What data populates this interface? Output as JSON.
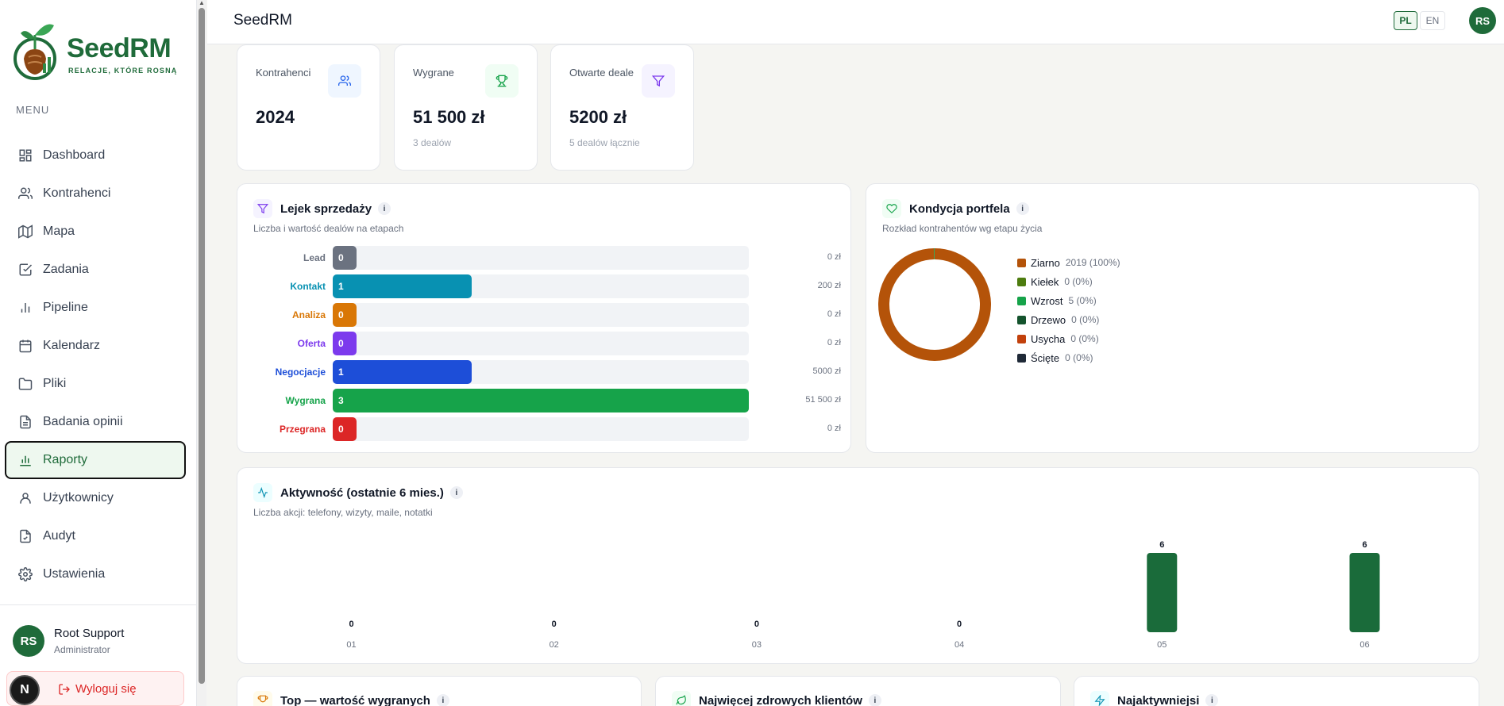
{
  "app": {
    "title": "SeedRM"
  },
  "logo": {
    "brand": "SeedRM",
    "tagline": "RELACJE, KTÓRE ROSNĄ"
  },
  "sidebar": {
    "menu_label": "MENU",
    "items": [
      {
        "label": "Dashboard",
        "icon": "grid-icon"
      },
      {
        "label": "Kontrahenci",
        "icon": "users-icon"
      },
      {
        "label": "Mapa",
        "icon": "map-icon"
      },
      {
        "label": "Zadania",
        "icon": "checkbox-icon"
      },
      {
        "label": "Pipeline",
        "icon": "bar-chart-icon"
      },
      {
        "label": "Kalendarz",
        "icon": "calendar-icon"
      },
      {
        "label": "Pliki",
        "icon": "folder-icon"
      },
      {
        "label": "Badania opinii",
        "icon": "document-icon"
      },
      {
        "label": "Raporty",
        "icon": "chart-icon",
        "active": true
      },
      {
        "label": "Użytkownicy",
        "icon": "user-icon"
      },
      {
        "label": "Audyt",
        "icon": "file-check-icon"
      },
      {
        "label": "Ustawienia",
        "icon": "gear-icon"
      }
    ],
    "user": {
      "initials": "RS",
      "name": "Root Support",
      "role": "Administrator"
    },
    "logout_label": "Wyloguj się",
    "n_badge": "N"
  },
  "topbar": {
    "lang_pl": "PL",
    "lang_en": "EN",
    "avatar": "RS"
  },
  "stats": [
    {
      "label": "Kontrahenci",
      "value": "2024",
      "sub": "",
      "icon": "users-icon",
      "color": "#2563eb",
      "bg": "#eff6ff"
    },
    {
      "label": "Wygrane",
      "value": "51 500 zł",
      "sub": "3 dealów",
      "icon": "trophy-icon",
      "color": "#16a34a",
      "bg": "#f0fdf4"
    },
    {
      "label": "Otwarte deale",
      "value": "5200 zł",
      "sub": "5 dealów łącznie",
      "icon": "filter-icon",
      "color": "#7c3aed",
      "bg": "#f5f3ff"
    }
  ],
  "funnel": {
    "title": "Lejek sprzedaży",
    "subtitle": "Liczba i wartość dealów na etapach",
    "info": "i",
    "max_count": 3,
    "rows": [
      {
        "label": "Lead",
        "count": "0",
        "count_value": 0,
        "amount": "0 zł",
        "color": "#6b7280"
      },
      {
        "label": "Kontakt",
        "count": "1",
        "count_value": 1,
        "amount": "200 zł",
        "color": "#0891b2"
      },
      {
        "label": "Analiza",
        "count": "0",
        "count_value": 0,
        "amount": "0 zł",
        "color": "#d97706"
      },
      {
        "label": "Oferta",
        "count": "0",
        "count_value": 0,
        "amount": "0 zł",
        "color": "#7c3aed"
      },
      {
        "label": "Negocjacje",
        "count": "1",
        "count_value": 1,
        "amount": "5000 zł",
        "color": "#1d4ed8"
      },
      {
        "label": "Wygrana",
        "count": "3",
        "count_value": 3,
        "amount": "51 500 zł",
        "color": "#16a34a"
      },
      {
        "label": "Przegrana",
        "count": "0",
        "count_value": 0,
        "amount": "0 zł",
        "color": "#dc2626"
      }
    ]
  },
  "portfolio": {
    "title": "Kondycja portfela",
    "subtitle": "Rozkład kontrahentów wg etapu życia",
    "info": "i",
    "legend": [
      {
        "label": "Ziarno",
        "count": "2019 (100%)",
        "value": 2019,
        "color": "#b45309"
      },
      {
        "label": "Kiełek",
        "count": "0 (0%)",
        "value": 0,
        "color": "#4d7c0f"
      },
      {
        "label": "Wzrost",
        "count": "5 (0%)",
        "value": 5,
        "color": "#16a34a"
      },
      {
        "label": "Drzewo",
        "count": "0 (0%)",
        "value": 0,
        "color": "#14532d"
      },
      {
        "label": "Usycha",
        "count": "0 (0%)",
        "value": 0,
        "color": "#c2410c"
      },
      {
        "label": "Ścięte",
        "count": "0 (0%)",
        "value": 0,
        "color": "#1f2937"
      }
    ]
  },
  "activity": {
    "title": "Aktywność (ostatnie 6 mies.)",
    "subtitle": "Liczba akcji: telefony, wizyty, maile, notatki",
    "info": "i"
  },
  "chart_data": {
    "type": "bar",
    "categories": [
      "01",
      "02",
      "03",
      "04",
      "05",
      "06"
    ],
    "values": [
      0,
      0,
      0,
      0,
      6,
      6
    ],
    "title": "Aktywność (ostatnie 6 mies.)",
    "xlabel": "",
    "ylabel": "",
    "color": "#1a6b3a",
    "grid": false
  },
  "bottom_panels": [
    {
      "title": "Top — wartość wygranych",
      "icon": "trophy-icon",
      "color": "#d97706",
      "bg": "#fffbeb",
      "info": "i"
    },
    {
      "title": "Najwięcej zdrowych klientów",
      "icon": "leaf-icon",
      "color": "#16a34a",
      "bg": "#f0fdf4",
      "info": "i"
    },
    {
      "title": "Najaktywniejsi",
      "icon": "zap-icon",
      "color": "#0891b2",
      "bg": "#ecfeff",
      "info": "i"
    }
  ]
}
